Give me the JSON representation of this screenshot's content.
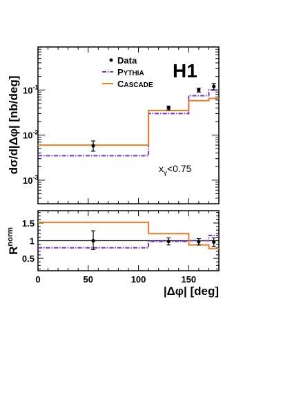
{
  "chart_data": [
    {
      "type": "step",
      "panel": "top",
      "yscale": "log",
      "ylabel": "dσ/d|Δφ| [nb/deg]",
      "xlim": [
        0,
        180
      ],
      "ylim": [
        0.0003,
        0.9
      ],
      "y_ticks": [
        0.001,
        0.01,
        0.1
      ],
      "y_tick_labels": [
        {
          "mantissa": "10",
          "exponent": "-3"
        },
        {
          "mantissa": "10",
          "exponent": "-2"
        },
        {
          "mantissa": "10",
          "exponent": "-1"
        }
      ],
      "bin_edges": [
        0,
        110,
        150,
        170,
        180
      ],
      "experiment_label": "H1",
      "annotation": {
        "prefix": "x",
        "subscript": "γ",
        "suffix": "<0.75"
      },
      "legend": {
        "position": "top-center",
        "entries": [
          {
            "label": "Data",
            "style": "marker",
            "color": "#000000"
          },
          {
            "label_cap": "P",
            "label_rest": "YTHIA",
            "style": "dash-dot",
            "color": "#7a2ed6"
          },
          {
            "label_cap": "C",
            "label_rest": "ASCADE",
            "style": "solid",
            "color": "#f47a20"
          }
        ]
      },
      "data_points": [
        {
          "x": 55,
          "y": 0.0058,
          "ylow": 0.0044,
          "yhigh": 0.0074
        },
        {
          "x": 130,
          "y": 0.04,
          "ylow": 0.036,
          "yhigh": 0.044
        },
        {
          "x": 160,
          "y": 0.1,
          "ylow": 0.09,
          "yhigh": 0.11
        },
        {
          "x": 175,
          "y": 0.12,
          "ylow": 0.1,
          "yhigh": 0.14
        }
      ],
      "series": [
        {
          "name": "Pythia",
          "color": "#7a2ed6",
          "style": "dash-dot",
          "values": [
            0.0035,
            0.03,
            0.075,
            0.1
          ]
        },
        {
          "name": "Cascade",
          "color": "#f47a20",
          "style": "solid",
          "values": [
            0.006,
            0.035,
            0.058,
            0.065
          ]
        }
      ]
    },
    {
      "type": "step",
      "panel": "ratio",
      "ylabel": "R",
      "ylabel_superscript": "norm",
      "xlabel": "|Δφ| [deg]",
      "xlim": [
        0,
        180
      ],
      "ylim": [
        0.15,
        1.85
      ],
      "x_ticks": [
        0,
        50,
        100,
        150
      ],
      "y_ticks": [
        0.5,
        1,
        1.5
      ],
      "y_tick_labels": [
        "0.5",
        "1",
        "1.5"
      ],
      "reference_line": 1,
      "bin_edges": [
        0,
        110,
        150,
        170,
        180
      ],
      "data_points": [
        {
          "x": 55,
          "y": 1.0,
          "ylow": 0.75,
          "yhigh": 1.28
        },
        {
          "x": 130,
          "y": 0.98,
          "ylow": 0.88,
          "yhigh": 1.08
        },
        {
          "x": 160,
          "y": 0.97,
          "ylow": 0.88,
          "yhigh": 1.06
        },
        {
          "x": 175,
          "y": 0.96,
          "ylow": 0.84,
          "yhigh": 1.08
        }
      ],
      "series": [
        {
          "name": "Pythia",
          "color": "#7a2ed6",
          "style": "dash-dot",
          "values": [
            0.8,
            0.98,
            1.0,
            1.15
          ]
        },
        {
          "name": "Cascade",
          "color": "#f47a20",
          "style": "solid",
          "values": [
            1.52,
            1.2,
            0.88,
            0.78
          ]
        }
      ]
    }
  ]
}
